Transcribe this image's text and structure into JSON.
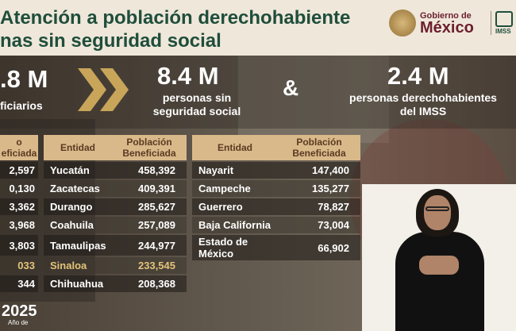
{
  "header": {
    "title_line1": "Atención a población derechohabiente",
    "title_line2": "nas sin seguridad social",
    "gob_small": "Gobierno de",
    "gob_big": "México",
    "imss_label": "IMSS"
  },
  "stats": {
    "left_value": ".8 M",
    "left_label": "ficiarios",
    "middle_value": "8.4 M",
    "middle_label_line1": "personas sin",
    "middle_label_line2": "seguridad social",
    "ampersand": "&",
    "right_value": "2.4 M",
    "right_label_line1": "personas derechohabientes",
    "right_label_line2": "del IMSS"
  },
  "table_left": {
    "header_line1": "o",
    "header_line2": "eficiada",
    "values": [
      "2,597",
      "0,130",
      "3,362",
      "3,968",
      "3,803",
      "033",
      "344"
    ]
  },
  "table_middle": {
    "col_entidad": "Entidad",
    "col_pob_line1": "Población",
    "col_pob_line2": "Beneficiada",
    "rows": [
      {
        "entidad": "Yucatán",
        "valor": "458,392"
      },
      {
        "entidad": "Zacatecas",
        "valor": "409,391"
      },
      {
        "entidad": "Durango",
        "valor": "285,627"
      },
      {
        "entidad": "Coahuila",
        "valor": "257,089"
      },
      {
        "entidad": "Tamaulipas",
        "valor": "244,977"
      },
      {
        "entidad": "Sinaloa",
        "valor": "233,545"
      },
      {
        "entidad": "Chihuahua",
        "valor": "208,368"
      }
    ]
  },
  "table_right": {
    "col_entidad": "Entidad",
    "col_pob_line1": "Población",
    "col_pob_line2": "Beneficiada",
    "rows": [
      {
        "entidad": "Nayarit",
        "valor": "147,400"
      },
      {
        "entidad": "Campeche",
        "valor": "135,277"
      },
      {
        "entidad": "Guerrero",
        "valor": "78,827"
      },
      {
        "entidad": "Baja California",
        "valor": "73,004"
      },
      {
        "entidad_line1": "Estado de",
        "entidad_line2": "México",
        "valor": "66,902"
      }
    ]
  },
  "footer": {
    "year": "2025",
    "year_sub": "Año de"
  },
  "colors": {
    "title_green": "#1f4e3b",
    "header_tan": "#d9b98a",
    "gob_maroon": "#6b1f2e",
    "chevron_gold": "#c9a55a"
  }
}
